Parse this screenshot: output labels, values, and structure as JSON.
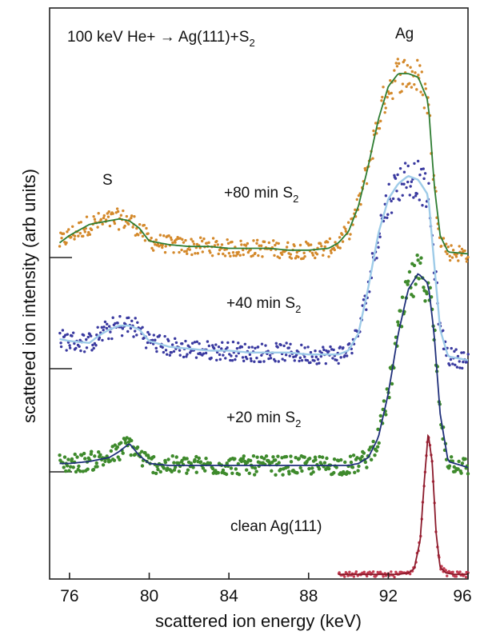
{
  "chart_data": {
    "type": "scatter",
    "title": "",
    "xlabel": "scattered ion energy (keV)",
    "ylabel": "scattered ion intensity (arb units)",
    "xlim": [
      75,
      96
    ],
    "x_ticks": [
      76,
      80,
      84,
      88,
      92,
      96
    ],
    "x_tick_labels": [
      "76",
      "80",
      "84",
      "88",
      "92",
      "96"
    ],
    "grid": false,
    "colors": {
      "80min": "#d4892b",
      "40min": "#3a3aa0",
      "20min": "#3e8a2c",
      "clean": "#c23a4f",
      "fit_80": "#2e7d32",
      "fit_40": "#9ecbe8",
      "fit_20": "#1f2f7a",
      "fit_clean": "#8b1a2b"
    },
    "annotations": {
      "header": "100 keV He+ → Ag(111)+S",
      "header_sub": "2",
      "ag_peak": "Ag",
      "s_peak": "S"
    },
    "series": [
      {
        "name": "+80 min S",
        "label_sub": "2",
        "x": [
          75.5,
          76,
          76.5,
          77,
          77.5,
          78,
          78.5,
          79,
          79.5,
          80,
          81,
          82,
          83,
          84,
          85,
          86,
          87,
          88,
          89,
          89.5,
          90,
          90.5,
          91,
          91.5,
          92,
          92.5,
          93,
          93.5,
          94,
          94.3,
          94.6,
          95,
          96
        ],
        "y": [
          0.08,
          0.12,
          0.15,
          0.18,
          0.19,
          0.2,
          0.21,
          0.2,
          0.16,
          0.09,
          0.07,
          0.06,
          0.06,
          0.05,
          0.05,
          0.05,
          0.04,
          0.04,
          0.05,
          0.08,
          0.14,
          0.28,
          0.5,
          0.75,
          0.93,
          1.0,
          1.0,
          0.98,
          0.85,
          0.4,
          0.12,
          0.03,
          0.02
        ]
      },
      {
        "name": "+40 min S",
        "label_sub": "2",
        "x": [
          75.5,
          76,
          77,
          77.5,
          78,
          78.5,
          79,
          79.5,
          80,
          81,
          82,
          83,
          84,
          85,
          86,
          87,
          88,
          89,
          89.5,
          90,
          90.5,
          91,
          91.5,
          92,
          92.5,
          93,
          93.5,
          94,
          94.3,
          94.6,
          95,
          96
        ],
        "y": [
          0.15,
          0.14,
          0.13,
          0.17,
          0.2,
          0.22,
          0.22,
          0.2,
          0.14,
          0.11,
          0.1,
          0.09,
          0.09,
          0.08,
          0.08,
          0.08,
          0.07,
          0.07,
          0.07,
          0.09,
          0.18,
          0.42,
          0.7,
          0.88,
          0.96,
          1.0,
          0.98,
          0.9,
          0.55,
          0.2,
          0.06,
          0.04
        ]
      },
      {
        "name": "+20 min S",
        "label_sub": "2",
        "x": [
          75.5,
          76,
          77,
          78,
          78.5,
          79,
          79.5,
          80,
          81,
          82,
          83,
          84,
          85,
          86,
          87,
          88,
          89,
          90,
          90.5,
          91,
          91.5,
          92,
          92.5,
          93,
          93.5,
          94,
          94.3,
          94.6,
          95,
          96
        ],
        "y": [
          0.05,
          0.05,
          0.06,
          0.08,
          0.11,
          0.15,
          0.09,
          0.05,
          0.04,
          0.04,
          0.04,
          0.04,
          0.04,
          0.04,
          0.04,
          0.04,
          0.04,
          0.04,
          0.05,
          0.08,
          0.18,
          0.4,
          0.7,
          0.92,
          1.0,
          0.95,
          0.7,
          0.3,
          0.06,
          0.03
        ]
      },
      {
        "name": "clean Ag(111)",
        "x": [
          89.5,
          90,
          91,
          92,
          92.5,
          93,
          93.3,
          93.6,
          93.8,
          94,
          94.2,
          94.4,
          94.6,
          94.9,
          95.3,
          96
        ],
        "y": [
          0.01,
          0.01,
          0.01,
          0.01,
          0.01,
          0.02,
          0.05,
          0.25,
          0.65,
          1.0,
          0.8,
          0.3,
          0.06,
          0.02,
          0.01,
          0.01
        ]
      }
    ]
  }
}
